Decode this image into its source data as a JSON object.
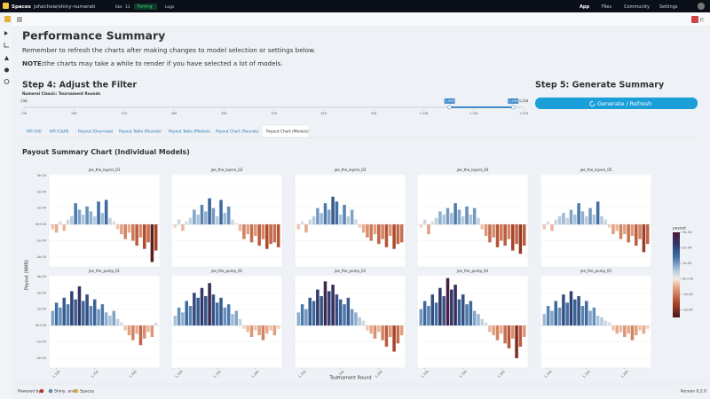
{
  "top_bar": {
    "brand": "Spaces",
    "repo": "jofaichow/shiny-numerati",
    "like": "like",
    "likes": 11,
    "status": "Running",
    "logs": "Logs",
    "nav": [
      "App",
      "Files",
      "Community",
      "Settings"
    ]
  },
  "header": {
    "user": "JC"
  },
  "page": {
    "title": "Performance Summary",
    "note": "Remember to refresh the charts after making changes to model selection or settings below.",
    "note_label": "NOTE:",
    "note_text": "the charts may take a while to render if you have selected a lot of models."
  },
  "filter": {
    "heading": "Step 4: Adjust the Filter",
    "label": "Numerai Classic: Tournament Rounds",
    "min": 158,
    "max": {
      "value": 1258,
      "label": "1,258"
    },
    "from": {
      "value": 1095,
      "label": "1,095"
    },
    "to": {
      "value": 1235,
      "label": "1,235"
    },
    "ticks": [
      158,
      268,
      378,
      488,
      598,
      708,
      818,
      928,
      {
        "value": 1038,
        "label": "1,038"
      },
      {
        "value": 1148,
        "label": "1,148"
      },
      {
        "value": 1258,
        "label": "1,258"
      }
    ]
  },
  "summary": {
    "heading": "Step 5: Generate Summary",
    "button": "Generate / Refresh"
  },
  "tabs": {
    "items": [
      "KPI (All)",
      "KPI (C&M)",
      "Payout (Overview)",
      "Payout Table (Rounds)",
      "Payout Table (Models)",
      "Payout Chart (Rounds)",
      "Payout Chart (Models)"
    ],
    "active": 6
  },
  "section": {
    "heading": "Payout Summary Chart (Individual Models)"
  },
  "chart_data": {
    "type": "bar",
    "x_label": "Tournament Round",
    "y_label": "Payout (NMR)",
    "legend_title": "payout",
    "x": [
      1095,
      1100,
      1105,
      1110,
      1115,
      1120,
      1125,
      1130,
      1135,
      1140,
      1145,
      1150,
      1155,
      1160,
      1165,
      1170,
      1175,
      1180,
      1185,
      1190,
      1195,
      1200,
      1205,
      1210,
      1215,
      1220,
      1225,
      1230
    ],
    "xlim": [
      1090,
      1235
    ],
    "xticks": [
      {
        "value": 1100,
        "label": "1,100"
      },
      {
        "value": 1150,
        "label": "1,150"
      },
      {
        "value": 1200,
        "label": "1,200"
      }
    ],
    "ylim": [
      -0.00026,
      0.00031
    ],
    "yticks": [
      {
        "value": 0.0003,
        "label": "3e-04"
      },
      {
        "value": 0.0002,
        "label": "2e-04"
      },
      {
        "value": 0.0001,
        "label": "1e-04"
      },
      {
        "value": 0,
        "label": "0e+00"
      },
      {
        "value": -0.0001,
        "label": "-1e-04"
      },
      {
        "value": -0.0002,
        "label": "-2e-04"
      }
    ],
    "grid": true,
    "clim": [
      -0.00025,
      0.0003
    ],
    "colorscale": [
      {
        "value": -0.00025,
        "color": "#4a1418"
      },
      {
        "value": -0.00015,
        "color": "#b04a2c"
      },
      {
        "value": -5e-05,
        "color": "#e8a98a"
      },
      {
        "value": 0,
        "color": "#f3ece6"
      },
      {
        "value": 6e-05,
        "color": "#a9c3dc"
      },
      {
        "value": 0.00014,
        "color": "#3f6fa4"
      },
      {
        "value": 0.00022,
        "color": "#2f3b6e"
      },
      {
        "value": 0.0003,
        "color": "#4a1838"
      }
    ],
    "series": [
      {
        "name": "joe_the_layers_01",
        "values": [
          -3e-05,
          -5e-05,
          2e-05,
          -4e-05,
          3e-05,
          5e-05,
          0.00013,
          9e-05,
          6e-05,
          0.00011,
          8e-05,
          5e-05,
          0.00014,
          7e-05,
          0.00015,
          4e-05,
          2e-05,
          -3e-05,
          -6e-05,
          -9e-05,
          -5e-05,
          -0.0001,
          -0.00013,
          -8e-05,
          -0.00015,
          -0.00011,
          -0.00023,
          -0.00016
        ]
      },
      {
        "name": "joe_the_layers_02",
        "values": [
          -2e-05,
          3e-05,
          -4e-05,
          2e-05,
          4e-05,
          9e-05,
          6e-05,
          0.00012,
          8e-05,
          0.00016,
          0.0001,
          5e-05,
          0.00015,
          7e-05,
          0.00011,
          3e-05,
          1e-05,
          -4e-05,
          -9e-05,
          -6e-05,
          -0.00011,
          -7e-05,
          -0.00013,
          -9e-05,
          -0.00015,
          -0.00012,
          -0.00011,
          -0.00014
        ]
      },
      {
        "name": "joe_the_layers_03",
        "values": [
          -3e-05,
          2e-05,
          -5e-05,
          3e-05,
          5e-05,
          0.0001,
          7e-05,
          0.00013,
          9e-05,
          0.00017,
          0.00014,
          6e-05,
          0.00012,
          5e-05,
          9e-05,
          3e-05,
          -2e-05,
          -5e-05,
          -8e-05,
          -0.0001,
          -6e-05,
          -0.00012,
          -9e-05,
          -0.00014,
          -7e-05,
          -0.00015,
          -0.00012,
          -0.00011
        ]
      },
      {
        "name": "joe_the_layers_04",
        "values": [
          -2e-05,
          3e-05,
          -6e-05,
          2e-05,
          4e-05,
          8e-05,
          6e-05,
          0.0001,
          7e-05,
          0.00013,
          9e-05,
          5e-05,
          0.00011,
          6e-05,
          0.0001,
          4e-05,
          -3e-05,
          -7e-05,
          -0.00011,
          -8e-05,
          -0.00014,
          -0.0001,
          -0.00013,
          -9e-05,
          -0.00016,
          -0.00012,
          -0.00018,
          -0.00013
        ]
      },
      {
        "name": "joe_the_layers_05",
        "values": [
          -3e-05,
          2e-05,
          -4e-05,
          3e-05,
          5e-05,
          7e-05,
          4e-05,
          9e-05,
          6e-05,
          0.00013,
          8e-05,
          5e-05,
          0.0001,
          6e-05,
          0.00014,
          5e-05,
          3e-05,
          -2e-05,
          -6e-05,
          -4e-05,
          -9e-05,
          -6e-05,
          -0.00011,
          -7e-05,
          -0.00013,
          -9e-05,
          -0.00017,
          -0.00012
        ]
      },
      {
        "name": "joe_the_pump_01",
        "values": [
          9e-05,
          0.00014,
          0.00011,
          0.00017,
          0.00013,
          0.00021,
          0.00016,
          0.00024,
          0.00015,
          0.00019,
          0.00012,
          0.00016,
          0.0001,
          0.00013,
          8e-05,
          6e-05,
          9e-05,
          4e-05,
          2e-05,
          -3e-05,
          -6e-05,
          -9e-05,
          -5e-05,
          -0.00012,
          -8e-05,
          -4e-05,
          -7e-05,
          2e-05
        ]
      },
      {
        "name": "joe_the_pump_02",
        "values": [
          6e-05,
          0.00011,
          8e-05,
          0.00015,
          0.00012,
          0.0002,
          0.00017,
          0.00023,
          0.00018,
          0.00026,
          0.00019,
          0.00014,
          0.00017,
          0.00011,
          0.00013,
          7e-05,
          9e-05,
          4e-05,
          -2e-05,
          -4e-05,
          -7e-05,
          -3e-05,
          -6e-05,
          -9e-05,
          -5e-05,
          -3e-05,
          -6e-05,
          -2e-05
        ]
      },
      {
        "name": "joe_the_pump_03",
        "values": [
          8e-05,
          0.00013,
          0.0001,
          0.00017,
          0.00015,
          0.00022,
          0.00018,
          0.00027,
          0.00021,
          0.00025,
          0.00019,
          0.00016,
          0.00013,
          0.00017,
          0.0001,
          8e-05,
          5e-05,
          3e-05,
          -3e-05,
          -5e-05,
          -8e-05,
          -4e-05,
          -9e-05,
          -0.00013,
          -7e-05,
          -0.00016,
          -0.00011,
          -6e-05
        ]
      },
      {
        "name": "joe_the_pump_04",
        "values": [
          0.0001,
          0.00015,
          0.00012,
          0.00019,
          0.00014,
          0.00023,
          0.00018,
          0.00029,
          0.00022,
          0.00025,
          0.00016,
          0.00019,
          0.00013,
          0.00015,
          9e-05,
          7e-05,
          4e-05,
          2e-05,
          -4e-05,
          -6e-05,
          -9e-05,
          -5e-05,
          -0.00011,
          -0.00014,
          -8e-05,
          -0.0002,
          -0.00013,
          -7e-05
        ]
      },
      {
        "name": "joe_the_pump_05",
        "values": [
          7e-05,
          0.00012,
          9e-05,
          0.00015,
          0.00011,
          0.00019,
          0.00014,
          0.00021,
          0.00016,
          0.00018,
          0.00012,
          0.00015,
          9e-05,
          0.00011,
          6e-05,
          5e-05,
          3e-05,
          2e-05,
          -3e-05,
          -5e-05,
          -4e-05,
          -7e-05,
          -5e-05,
          -9e-05,
          -6e-05,
          -3e-05,
          -5e-05,
          -2e-05
        ]
      }
    ]
  },
  "footer": {
    "powered": "Powered by",
    "shiny": "Shiny, and",
    "spaces": "Spaces",
    "version": "Version 0.2.0"
  }
}
